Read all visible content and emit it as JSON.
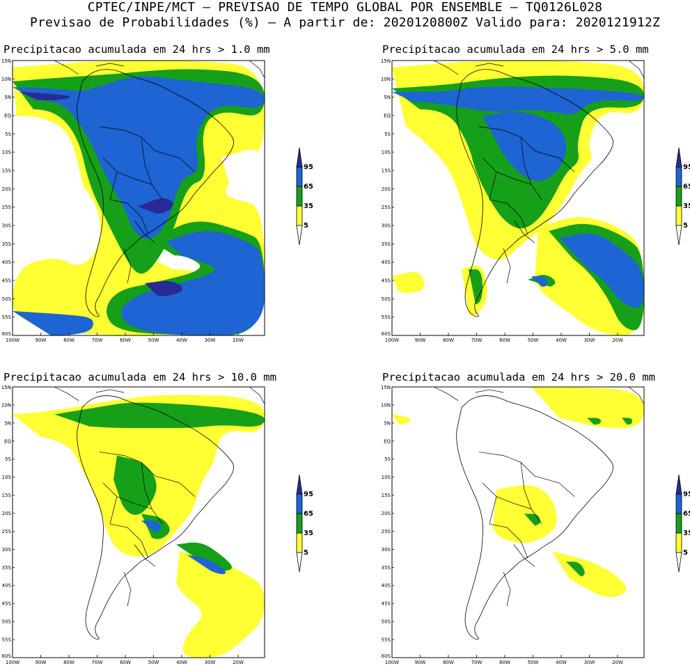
{
  "header": {
    "line1": "CPTEC/INPE/MCT – PREVISAO DE TEMPO GLOBAL POR ENSEMBLE – TQ0126L028",
    "line2": "Previsao de Probabilidades (%) –  A partir de: 2020120800Z  Valido para: 2020121912Z"
  },
  "panels": [
    {
      "title": "Precipitacao acumulada em 24 hrs > 1.0 mm"
    },
    {
      "title": "Precipitacao acumulada em 24 hrs > 5.0 mm"
    },
    {
      "title": "Precipitacao acumulada em 24 hrs > 10.0 mm"
    },
    {
      "title": "Precipitacao acumulada em 24 hrs > 20.0 mm"
    }
  ],
  "lat_labels": [
    "15N",
    "10N",
    "5N",
    "EQ",
    "5S",
    "10S",
    "15S",
    "20S",
    "25S",
    "30S",
    "35S",
    "40S",
    "45S",
    "50S",
    "55S",
    "60S"
  ],
  "lon_labels": [
    "100W",
    "90W",
    "80W",
    "70W",
    "60W",
    "50W",
    "40W",
    "30W",
    "20W"
  ],
  "colorbar": {
    "labels": [
      "95",
      "65",
      "35",
      "5"
    ],
    "colors": {
      "c5_35": "#ffff33",
      "c35_65": "#16a01a",
      "c65_95": "#1e64d2",
      "c95": "#2a2a96"
    }
  }
}
